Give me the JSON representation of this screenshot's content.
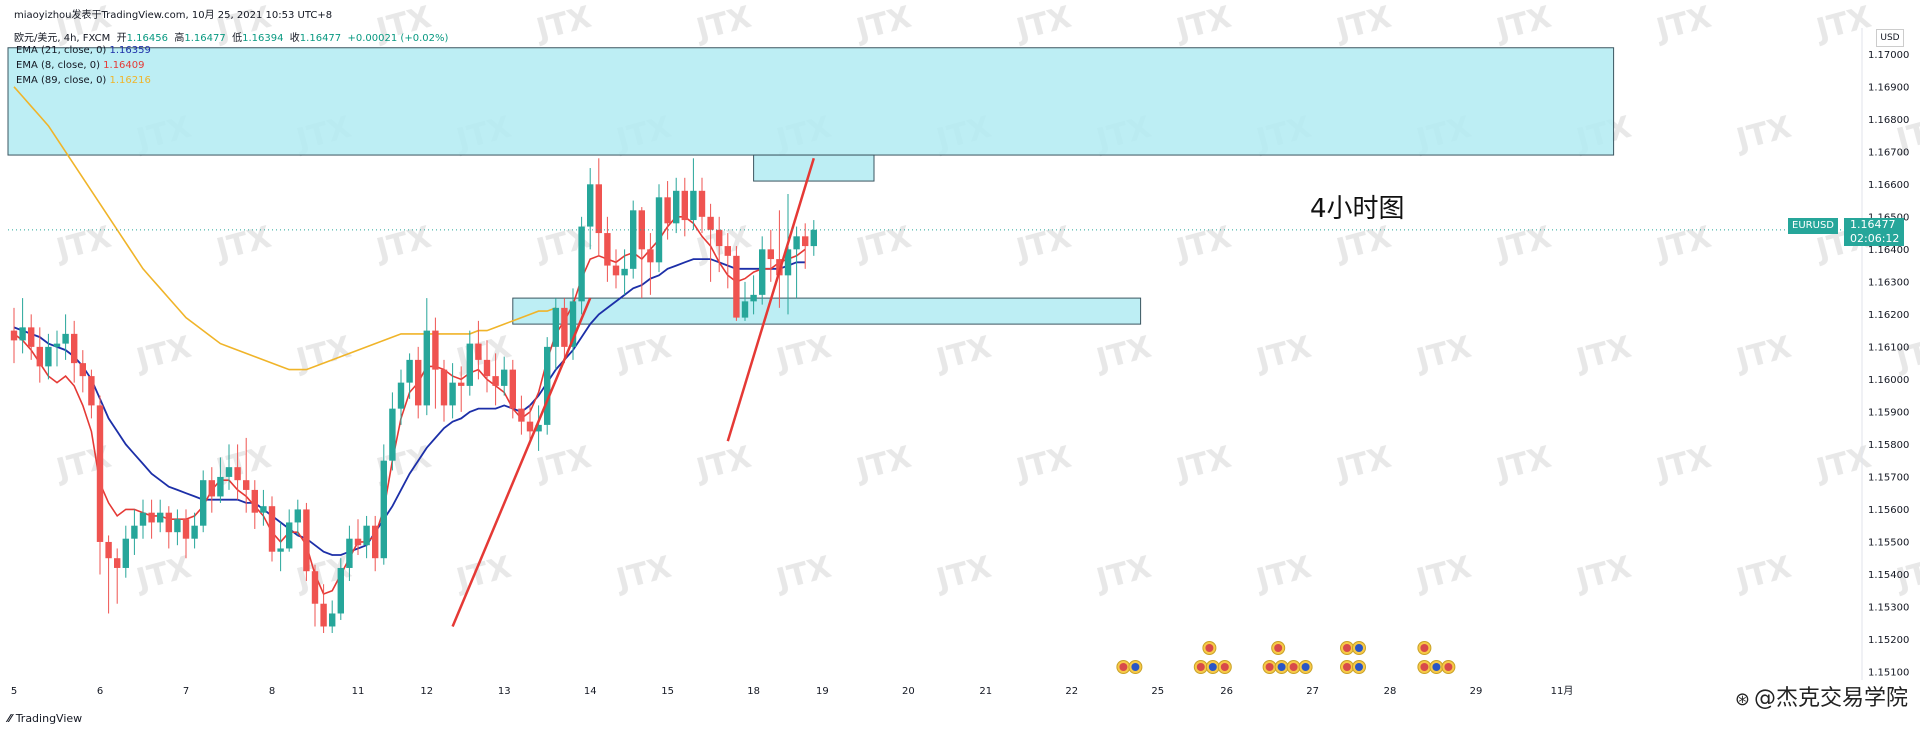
{
  "header": {
    "publisher": "miaoyizhou发表于TradingView.com, 10月 25, 2021 10:53 UTC+8",
    "symbol_line": "欧元/美元, 4h, FXCM",
    "open_label": "开",
    "open": "1.16456",
    "high_label": "高",
    "high": "1.16477",
    "low_label": "低",
    "low": "1.16394",
    "close_label": "收",
    "close": "1.16477",
    "change": "+0.00021 (+0.02%)"
  },
  "indicators": [
    {
      "label": "EMA (21, close, 0)",
      "value": "1.16359"
    },
    {
      "label": "EMA (8, close, 0)",
      "value": "1.16409"
    },
    {
      "label": "EMA (89, close, 0)",
      "value": "1.16216"
    }
  ],
  "annotation": "4小时图",
  "price_axis": {
    "currency": "USD"
  },
  "last_price": {
    "symbol": "EURUSD",
    "price": "1.16477",
    "countdown": "02:06:12"
  },
  "footer": {
    "brand": "TradingView"
  },
  "watermark": "@杰克交易学院",
  "colors": {
    "up": "#26a69a",
    "down": "#ef5350",
    "ema8": "#e53935",
    "ema21": "#1c2fa8",
    "ema89": "#f0b429",
    "zone_fill": "#b2ebf2",
    "zone_stroke": "#3b5560"
  },
  "chart_data": {
    "type": "candlestick",
    "title": "欧元/美元, 4h, FXCM",
    "ylim": [
      1.151,
      1.1705
    ],
    "y_ticks": [
      1.17,
      1.169,
      1.168,
      1.167,
      1.166,
      1.165,
      1.164,
      1.163,
      1.162,
      1.161,
      1.16,
      1.159,
      1.158,
      1.157,
      1.156,
      1.155,
      1.154,
      1.153,
      1.152,
      1.151
    ],
    "x_ticks": [
      {
        "label": "5",
        "i": 0
      },
      {
        "label": "6",
        "i": 10
      },
      {
        "label": "7",
        "i": 20
      },
      {
        "label": "8",
        "i": 30
      },
      {
        "label": "11",
        "i": 40
      },
      {
        "label": "12",
        "i": 48
      },
      {
        "label": "13",
        "i": 57
      },
      {
        "label": "14",
        "i": 67
      },
      {
        "label": "15",
        "i": 76
      },
      {
        "label": "18",
        "i": 86
      },
      {
        "label": "19",
        "i": 94
      },
      {
        "label": "20",
        "i": 104
      },
      {
        "label": "21",
        "i": 113
      },
      {
        "label": "22",
        "i": 123
      },
      {
        "label": "25",
        "i": 133
      },
      {
        "label": "26",
        "i": 141
      },
      {
        "label": "27",
        "i": 151
      },
      {
        "label": "28",
        "i": 160
      },
      {
        "label": "29",
        "i": 170
      },
      {
        "label": "11月",
        "i": 180
      }
    ],
    "candles": [
      [
        1.1615,
        1.1612,
        1.1622,
        1.1605
      ],
      [
        1.1612,
        1.1616,
        1.1625,
        1.1608
      ],
      [
        1.1616,
        1.161,
        1.162,
        1.1606
      ],
      [
        1.161,
        1.1604,
        1.1616,
        1.1599
      ],
      [
        1.1604,
        1.161,
        1.1614,
        1.16
      ],
      [
        1.161,
        1.1611,
        1.1615,
        1.1604
      ],
      [
        1.1611,
        1.1614,
        1.162,
        1.1606
      ],
      [
        1.1614,
        1.1605,
        1.1618,
        1.1599
      ],
      [
        1.1605,
        1.1601,
        1.1609,
        1.1596
      ],
      [
        1.1601,
        1.1592,
        1.1603,
        1.1588
      ],
      [
        1.1592,
        1.155,
        1.1595,
        1.154
      ],
      [
        1.155,
        1.1545,
        1.1552,
        1.1528
      ],
      [
        1.1545,
        1.1542,
        1.1548,
        1.1531
      ],
      [
        1.1542,
        1.1551,
        1.1555,
        1.1539
      ],
      [
        1.1551,
        1.1555,
        1.156,
        1.1546
      ],
      [
        1.1555,
        1.1559,
        1.1563,
        1.1551
      ],
      [
        1.1559,
        1.1556,
        1.1563,
        1.1551
      ],
      [
        1.1556,
        1.1559,
        1.1563,
        1.1553
      ],
      [
        1.1559,
        1.1553,
        1.1561,
        1.1548
      ],
      [
        1.1553,
        1.1557,
        1.156,
        1.1549
      ],
      [
        1.1557,
        1.1551,
        1.156,
        1.1545
      ],
      [
        1.1551,
        1.1555,
        1.1559,
        1.1548
      ],
      [
        1.1555,
        1.1569,
        1.1572,
        1.1553
      ],
      [
        1.1569,
        1.1564,
        1.1573,
        1.1559
      ],
      [
        1.1564,
        1.157,
        1.1576,
        1.1562
      ],
      [
        1.157,
        1.1573,
        1.158,
        1.1566
      ],
      [
        1.1573,
        1.1569,
        1.158,
        1.1563
      ],
      [
        1.1569,
        1.1566,
        1.1582,
        1.1559
      ],
      [
        1.1566,
        1.1559,
        1.1569,
        1.1554
      ],
      [
        1.1559,
        1.1561,
        1.1566,
        1.1555
      ],
      [
        1.1561,
        1.1547,
        1.1564,
        1.1544
      ],
      [
        1.1547,
        1.1548,
        1.1556,
        1.1541
      ],
      [
        1.1548,
        1.1556,
        1.156,
        1.1547
      ],
      [
        1.1556,
        1.156,
        1.1563,
        1.1552
      ],
      [
        1.156,
        1.1541,
        1.1562,
        1.1538
      ],
      [
        1.1541,
        1.1531,
        1.1543,
        1.1524
      ],
      [
        1.1531,
        1.1524,
        1.1537,
        1.1522
      ],
      [
        1.1524,
        1.1528,
        1.1532,
        1.1522
      ],
      [
        1.1528,
        1.1542,
        1.1545,
        1.1526
      ],
      [
        1.1542,
        1.1551,
        1.1555,
        1.1538
      ],
      [
        1.1551,
        1.1549,
        1.1557,
        1.1546
      ],
      [
        1.1549,
        1.1555,
        1.1558,
        1.1545
      ],
      [
        1.1555,
        1.1545,
        1.1558,
        1.1541
      ],
      [
        1.1545,
        1.1575,
        1.158,
        1.1543
      ],
      [
        1.1575,
        1.1591,
        1.1596,
        1.1572
      ],
      [
        1.1591,
        1.1599,
        1.1603,
        1.1586
      ],
      [
        1.1599,
        1.1606,
        1.1608,
        1.1594
      ],
      [
        1.1606,
        1.1592,
        1.161,
        1.1588
      ],
      [
        1.1592,
        1.1615,
        1.1625,
        1.1589
      ],
      [
        1.1615,
        1.1603,
        1.1619,
        1.1591
      ],
      [
        1.1603,
        1.1592,
        1.1606,
        1.1587
      ],
      [
        1.1592,
        1.1599,
        1.1605,
        1.1588
      ],
      [
        1.1599,
        1.1598,
        1.1604,
        1.159
      ],
      [
        1.1598,
        1.1611,
        1.1615,
        1.1595
      ],
      [
        1.1611,
        1.1606,
        1.1618,
        1.16
      ],
      [
        1.1606,
        1.1601,
        1.1612,
        1.1596
      ],
      [
        1.1601,
        1.1598,
        1.1608,
        1.1592
      ],
      [
        1.1598,
        1.1603,
        1.1607,
        1.1595
      ],
      [
        1.1603,
        1.1591,
        1.1606,
        1.1588
      ],
      [
        1.1591,
        1.1587,
        1.1595,
        1.1583
      ],
      [
        1.1587,
        1.1584,
        1.1592,
        1.158
      ],
      [
        1.1584,
        1.1586,
        1.1592,
        1.1578
      ],
      [
        1.1586,
        1.161,
        1.1613,
        1.1583
      ],
      [
        1.161,
        1.1622,
        1.1625,
        1.1603
      ],
      [
        1.1622,
        1.161,
        1.1625,
        1.1605
      ],
      [
        1.161,
        1.1624,
        1.1628,
        1.1606
      ],
      [
        1.1624,
        1.1647,
        1.165,
        1.162
      ],
      [
        1.1647,
        1.166,
        1.1665,
        1.164
      ],
      [
        1.166,
        1.1645,
        1.1668,
        1.1638
      ],
      [
        1.1645,
        1.1635,
        1.165,
        1.163
      ],
      [
        1.1635,
        1.1632,
        1.164,
        1.1628
      ],
      [
        1.1632,
        1.1634,
        1.164,
        1.1626
      ],
      [
        1.1634,
        1.1652,
        1.1655,
        1.1631
      ],
      [
        1.1652,
        1.164,
        1.1653,
        1.1625
      ],
      [
        1.164,
        1.1636,
        1.1645,
        1.1626
      ],
      [
        1.1636,
        1.1656,
        1.166,
        1.1633
      ],
      [
        1.1656,
        1.1648,
        1.1661,
        1.1643
      ],
      [
        1.1648,
        1.1658,
        1.1662,
        1.1645
      ],
      [
        1.1658,
        1.1649,
        1.1662,
        1.1644
      ],
      [
        1.1649,
        1.1658,
        1.1668,
        1.1646
      ],
      [
        1.1658,
        1.165,
        1.1662,
        1.1645
      ],
      [
        1.165,
        1.1646,
        1.1654,
        1.163
      ],
      [
        1.1646,
        1.1641,
        1.165,
        1.1633
      ],
      [
        1.1641,
        1.1638,
        1.1645,
        1.1628
      ],
      [
        1.1638,
        1.1619,
        1.1641,
        1.1618
      ],
      [
        1.1619,
        1.1624,
        1.163,
        1.1618
      ],
      [
        1.1624,
        1.1626,
        1.1632,
        1.162
      ],
      [
        1.1626,
        1.164,
        1.1644,
        1.1623
      ],
      [
        1.164,
        1.1637,
        1.1646,
        1.163
      ],
      [
        1.1637,
        1.1632,
        1.1652,
        1.1622
      ],
      [
        1.1632,
        1.164,
        1.1657,
        1.162
      ],
      [
        1.164,
        1.1644,
        1.1647,
        1.1625
      ],
      [
        1.1644,
        1.1641,
        1.1648,
        1.1634
      ],
      [
        1.1641,
        1.1646,
        1.1649,
        1.1638
      ]
    ],
    "ema8": [
      1.1614,
      1.1612,
      1.1609,
      1.1605,
      1.1601,
      1.1599,
      1.1601,
      1.1598,
      1.1592,
      1.1584,
      1.1568,
      1.1562,
      1.1558,
      1.156,
      1.156,
      1.1559,
      1.1558,
      1.1558,
      1.1557,
      1.1557,
      1.1557,
      1.1558,
      1.1561,
      1.1566,
      1.1569,
      1.1569,
      1.1566,
      1.1564,
      1.1561,
      1.1558,
      1.1553,
      1.155,
      1.1553,
      1.1553,
      1.1549,
      1.154,
      1.1534,
      1.1535,
      1.154,
      1.1545,
      1.155,
      1.155,
      1.1552,
      1.156,
      1.1575,
      1.1588,
      1.1596,
      1.1599,
      1.1604,
      1.1604,
      1.1603,
      1.1601,
      1.16,
      1.1602,
      1.1603,
      1.16,
      1.1598,
      1.1596,
      1.1591,
      1.1588,
      1.159,
      1.1596,
      1.1606,
      1.1614,
      1.1618,
      1.1623,
      1.1631,
      1.1637,
      1.1638,
      1.1637,
      1.1636,
      1.1638,
      1.1639,
      1.1637,
      1.164,
      1.1643,
      1.1647,
      1.165,
      1.165,
      1.1648,
      1.1644,
      1.1641,
      1.1636,
      1.1632,
      1.163,
      1.1631,
      1.1633,
      1.1634,
      1.1634,
      1.1636,
      1.1637,
      1.1638,
      1.164
    ],
    "ema21": [
      1.1616,
      1.1615,
      1.1614,
      1.1613,
      1.1611,
      1.161,
      1.1609,
      1.1607,
      1.1604,
      1.16,
      1.1594,
      1.1588,
      1.1584,
      1.158,
      1.1577,
      1.1574,
      1.1571,
      1.1569,
      1.1567,
      1.1566,
      1.1565,
      1.1564,
      1.1563,
      1.1563,
      1.1563,
      1.1563,
      1.1563,
      1.1562,
      1.1562,
      1.156,
      1.1558,
      1.1556,
      1.1554,
      1.1552,
      1.1551,
      1.1549,
      1.1547,
      1.1546,
      1.1546,
      1.1547,
      1.1548,
      1.1549,
      1.1553,
      1.1557,
      1.1561,
      1.1566,
      1.1571,
      1.1575,
      1.1579,
      1.1582,
      1.1585,
      1.1587,
      1.1588,
      1.159,
      1.1591,
      1.1591,
      1.1591,
      1.1592,
      1.1591,
      1.159,
      1.1592,
      1.1595,
      1.1599,
      1.1603,
      1.1606,
      1.1609,
      1.1613,
      1.1617,
      1.162,
      1.1622,
      1.1624,
      1.1626,
      1.1628,
      1.1629,
      1.1631,
      1.1632,
      1.1634,
      1.1635,
      1.1636,
      1.1637,
      1.1637,
      1.1637,
      1.1636,
      1.1635,
      1.1634,
      1.1634,
      1.1634,
      1.1634,
      1.1634,
      1.1634,
      1.1635,
      1.1636,
      1.1636
    ],
    "ema89": [
      1.169,
      1.1687,
      1.1684,
      1.1681,
      1.1678,
      1.1674,
      1.167,
      1.1666,
      1.1662,
      1.1658,
      1.1654,
      1.165,
      1.1646,
      1.1642,
      1.1638,
      1.1634,
      1.1631,
      1.1628,
      1.1625,
      1.1622,
      1.1619,
      1.1617,
      1.1615,
      1.1613,
      1.1611,
      1.161,
      1.1609,
      1.1608,
      1.1607,
      1.1606,
      1.1605,
      1.1604,
      1.1603,
      1.1603,
      1.1603,
      1.1604,
      1.1605,
      1.1606,
      1.1607,
      1.1608,
      1.1609,
      1.161,
      1.1611,
      1.1612,
      1.1613,
      1.1614,
      1.1614,
      1.1614,
      1.1614,
      1.1614,
      1.1614,
      1.1614,
      1.1614,
      1.1614,
      1.1615,
      1.1615,
      1.1616,
      1.1617,
      1.1618,
      1.1619,
      1.162,
      1.1621,
      1.1621,
      1.1622
    ],
    "zones": [
      {
        "i_start": -1,
        "i_end": 186,
        "y_top": 1.1702,
        "y_bottom": 1.1669
      },
      {
        "i_start": 86,
        "i_end": 100,
        "y_top": 1.1669,
        "y_bottom": 1.1661
      },
      {
        "i_start": 58,
        "i_end": 131,
        "y_top": 1.1625,
        "y_bottom": 1.1617
      }
    ],
    "trend_lines": [
      {
        "from": [
          51,
          1.1524
        ],
        "to": [
          67,
          1.1625
        ]
      },
      {
        "from": [
          83,
          1.1581
        ],
        "to": [
          93,
          1.1668
        ]
      }
    ],
    "event_rows": [
      {
        "i": 129,
        "count": 2,
        "row": 2
      },
      {
        "i": 138,
        "count": 3,
        "row": 2
      },
      {
        "i": 139,
        "count": 1,
        "row": 1
      },
      {
        "i": 146,
        "count": 4,
        "row": 2
      },
      {
        "i": 147,
        "count": 1,
        "row": 1
      },
      {
        "i": 155,
        "count": 2,
        "row": 2
      },
      {
        "i": 155,
        "count": 2,
        "row": 1
      },
      {
        "i": 164,
        "count": 3,
        "row": 2
      },
      {
        "i": 164,
        "count": 1,
        "row": 1
      }
    ]
  }
}
